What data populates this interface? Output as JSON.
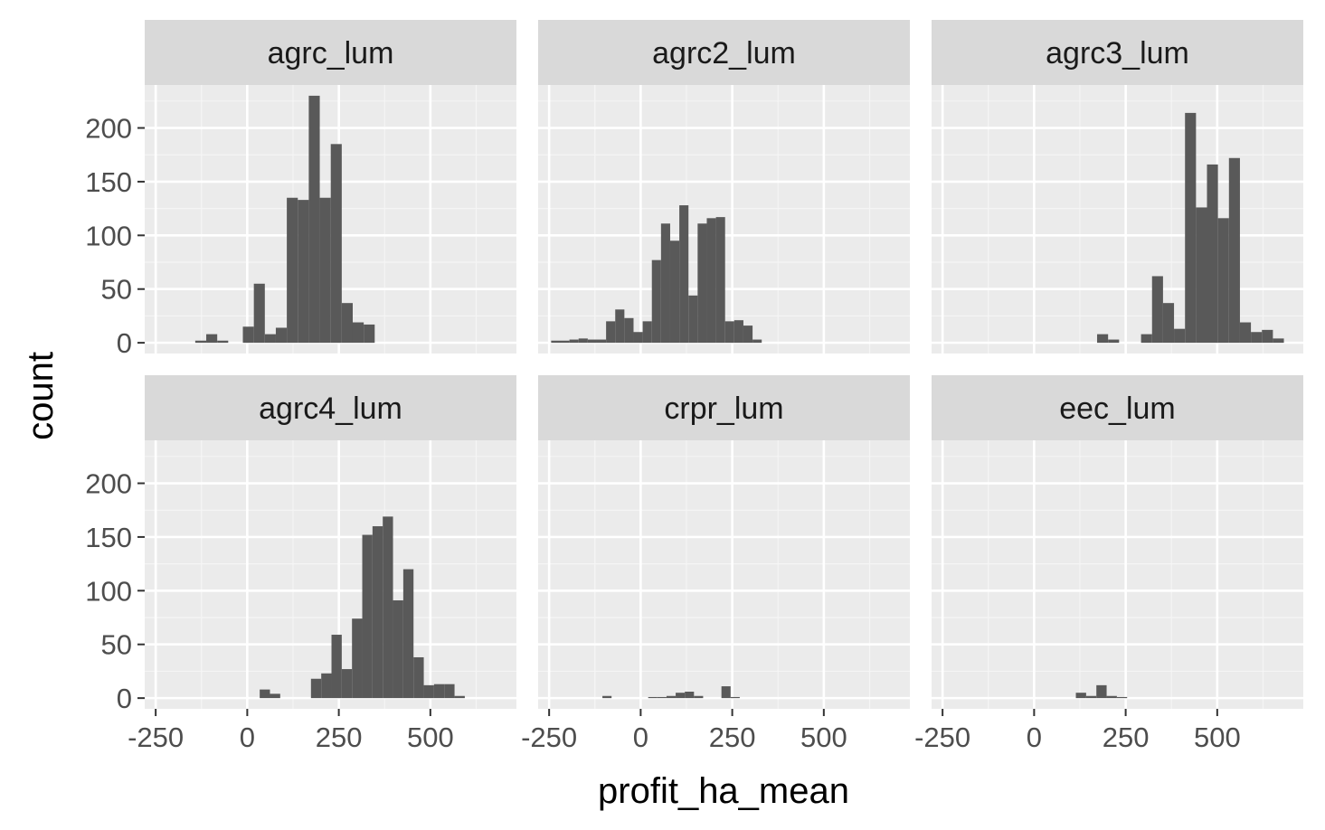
{
  "chart_data": {
    "type": "bar",
    "subtype": "faceted-histogram",
    "xlabel": "profit_ha_mean",
    "ylabel": "count",
    "xlim": [
      -280,
      735
    ],
    "ylim": [
      -10,
      240
    ],
    "xticks": [
      -250,
      0,
      250,
      500
    ],
    "xtick_labels": [
      "-250",
      "0",
      "250",
      "500"
    ],
    "yticks": [
      0,
      50,
      100,
      150,
      200
    ],
    "ytick_labels": [
      "0",
      "50",
      "100",
      "150",
      "200"
    ],
    "grid": true,
    "legend": "none",
    "colors": {
      "bar": "#595959",
      "panel_bg": "#ebebeb",
      "strip_bg": "#d9d9d9",
      "grid_major": "#ffffff",
      "grid_minor": "#f5f5f5"
    },
    "facets": [
      {
        "label": "agrc_lum",
        "bin_width": 30,
        "bins": [
          {
            "x": -127,
            "count": 2
          },
          {
            "x": -97,
            "count": 8
          },
          {
            "x": -67,
            "count": 2
          },
          {
            "x": 3,
            "count": 15
          },
          {
            "x": 33,
            "count": 55
          },
          {
            "x": 63,
            "count": 8
          },
          {
            "x": 93,
            "count": 14
          },
          {
            "x": 123,
            "count": 135
          },
          {
            "x": 153,
            "count": 133
          },
          {
            "x": 183,
            "count": 230
          },
          {
            "x": 213,
            "count": 135
          },
          {
            "x": 243,
            "count": 185
          },
          {
            "x": 273,
            "count": 37
          },
          {
            "x": 303,
            "count": 19
          },
          {
            "x": 333,
            "count": 17
          }
        ]
      },
      {
        "label": "agrc2_lum",
        "bin_width": 25,
        "bins": [
          {
            "x": -232,
            "count": 2
          },
          {
            "x": -207,
            "count": 2
          },
          {
            "x": -182,
            "count": 3
          },
          {
            "x": -157,
            "count": 4
          },
          {
            "x": -132,
            "count": 3
          },
          {
            "x": -107,
            "count": 3
          },
          {
            "x": -82,
            "count": 20
          },
          {
            "x": -57,
            "count": 31
          },
          {
            "x": -32,
            "count": 23
          },
          {
            "x": -7,
            "count": 10
          },
          {
            "x": 18,
            "count": 20
          },
          {
            "x": 43,
            "count": 77
          },
          {
            "x": 68,
            "count": 111
          },
          {
            "x": 93,
            "count": 95
          },
          {
            "x": 118,
            "count": 128
          },
          {
            "x": 143,
            "count": 44
          },
          {
            "x": 168,
            "count": 111
          },
          {
            "x": 193,
            "count": 116
          },
          {
            "x": 218,
            "count": 117
          },
          {
            "x": 243,
            "count": 20
          },
          {
            "x": 268,
            "count": 21
          },
          {
            "x": 293,
            "count": 16
          },
          {
            "x": 318,
            "count": 3
          }
        ]
      },
      {
        "label": "agrc3_lum",
        "bin_width": 30,
        "bins": [
          {
            "x": 187,
            "count": 8
          },
          {
            "x": 217,
            "count": 3
          },
          {
            "x": 307,
            "count": 8
          },
          {
            "x": 337,
            "count": 62
          },
          {
            "x": 367,
            "count": 37
          },
          {
            "x": 397,
            "count": 13
          },
          {
            "x": 427,
            "count": 214
          },
          {
            "x": 457,
            "count": 126
          },
          {
            "x": 487,
            "count": 166
          },
          {
            "x": 517,
            "count": 116
          },
          {
            "x": 547,
            "count": 172
          },
          {
            "x": 577,
            "count": 19
          },
          {
            "x": 607,
            "count": 10
          },
          {
            "x": 637,
            "count": 12
          },
          {
            "x": 667,
            "count": 4
          }
        ]
      },
      {
        "label": "agrc4_lum",
        "bin_width": 28,
        "bins": [
          {
            "x": 48,
            "count": 8
          },
          {
            "x": 76,
            "count": 4
          },
          {
            "x": 188,
            "count": 18
          },
          {
            "x": 216,
            "count": 23
          },
          {
            "x": 244,
            "count": 59
          },
          {
            "x": 272,
            "count": 27
          },
          {
            "x": 300,
            "count": 74
          },
          {
            "x": 328,
            "count": 152
          },
          {
            "x": 356,
            "count": 160
          },
          {
            "x": 384,
            "count": 169
          },
          {
            "x": 412,
            "count": 91
          },
          {
            "x": 440,
            "count": 120
          },
          {
            "x": 468,
            "count": 38
          },
          {
            "x": 496,
            "count": 12
          },
          {
            "x": 524,
            "count": 13
          },
          {
            "x": 552,
            "count": 13
          },
          {
            "x": 580,
            "count": 2
          }
        ]
      },
      {
        "label": "crpr_lum",
        "bin_width": 25,
        "bins": [
          {
            "x": -92,
            "count": 2
          },
          {
            "x": 33,
            "count": 1
          },
          {
            "x": 58,
            "count": 1
          },
          {
            "x": 83,
            "count": 2
          },
          {
            "x": 108,
            "count": 5
          },
          {
            "x": 133,
            "count": 6
          },
          {
            "x": 158,
            "count": 2
          },
          {
            "x": 233,
            "count": 11
          },
          {
            "x": 258,
            "count": 1
          }
        ]
      },
      {
        "label": "eec_lum",
        "bin_width": 28,
        "bins": [
          {
            "x": 128,
            "count": 5
          },
          {
            "x": 156,
            "count": 2
          },
          {
            "x": 184,
            "count": 12
          },
          {
            "x": 212,
            "count": 2
          },
          {
            "x": 240,
            "count": 1
          }
        ]
      }
    ]
  }
}
